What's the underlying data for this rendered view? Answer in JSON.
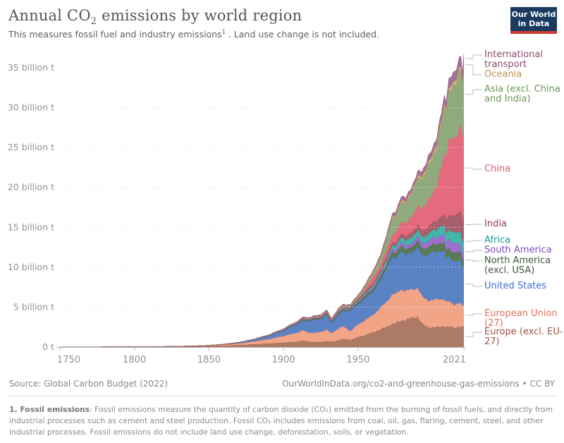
{
  "header": {
    "title_pre": "Annual CO",
    "title_sub": "2",
    "title_post": " emissions by world region",
    "subtitle_pre": "This measures fossil fuel and industry emissions",
    "subtitle_sup": "1",
    "subtitle_post": " . Land use change is not included."
  },
  "logo": {
    "line1": "Our World",
    "line2": "in Data",
    "bg": "#1A3A60",
    "accent": "#CF3B32"
  },
  "footer": {
    "source": "Source: Global Carbon Budget (2022)",
    "attribution": "OurWorldInData.org/co2-and-greenhouse-gas-emissions • CC BY"
  },
  "footnote": {
    "lead": "1. Fossil emissions",
    "body": ": Fossil emissions measure the quantity of carbon dioxide (CO₂) emitted from the burning of fossil fuels, and directly from industrial processes such as cement and steel production. Fossil CO₂ includes emissions from coal, oil, gas, flaring, cement, steel, and other industrial processes. Fossil emissions do not include land use change, deforestation, soils, or vegetation."
  },
  "chart_data": {
    "type": "area",
    "stacked": true,
    "title": "Annual CO2 emissions by world region",
    "unit": "billion tonnes CO2",
    "x_range": [
      1750,
      2021
    ],
    "ylim": [
      0,
      37
    ],
    "grid": true,
    "legend_position": "right",
    "y_ticks": [
      {
        "v": 0,
        "label": "0 t"
      },
      {
        "v": 5,
        "label": "5 billion t"
      },
      {
        "v": 10,
        "label": "10 billion t"
      },
      {
        "v": 15,
        "label": "15 billion t"
      },
      {
        "v": 20,
        "label": "20 billion t"
      },
      {
        "v": 25,
        "label": "25 billion t"
      },
      {
        "v": 30,
        "label": "30 billion t"
      },
      {
        "v": 35,
        "label": "35 billion t"
      }
    ],
    "x_ticks": [
      1750,
      1800,
      1850,
      1900,
      1950,
      2021
    ],
    "years": [
      1750,
      1775,
      1800,
      1820,
      1840,
      1850,
      1860,
      1870,
      1880,
      1890,
      1900,
      1905,
      1910,
      1913,
      1918,
      1920,
      1925,
      1929,
      1932,
      1937,
      1940,
      1945,
      1950,
      1955,
      1960,
      1965,
      1970,
      1973,
      1975,
      1979,
      1982,
      1985,
      1990,
      1993,
      1997,
      2000,
      2003,
      2005,
      2008,
      2009,
      2011,
      2013,
      2015,
      2017,
      2019,
      2020,
      2021
    ],
    "series": [
      {
        "key": "europe_excl",
        "label": "Europe (excl. EU-27)",
        "color": "#9D5345",
        "fill": "#AC7A65",
        "values": [
          0.009,
          0.015,
          0.028,
          0.05,
          0.09,
          0.12,
          0.17,
          0.25,
          0.35,
          0.45,
          0.55,
          0.62,
          0.7,
          0.78,
          0.7,
          0.62,
          0.65,
          0.72,
          0.65,
          0.85,
          1.0,
          0.9,
          1.25,
          1.5,
          1.85,
          2.2,
          2.6,
          2.9,
          3.0,
          3.3,
          3.4,
          3.6,
          3.8,
          2.9,
          2.5,
          2.45,
          2.5,
          2.55,
          2.6,
          2.45,
          2.55,
          2.5,
          2.45,
          2.5,
          2.55,
          2.45,
          2.6
        ]
      },
      {
        "key": "eu27",
        "label": "European Union (27)",
        "color": "#E2705C",
        "fill": "#F2A487",
        "values": [
          0.001,
          0.002,
          0.004,
          0.01,
          0.03,
          0.06,
          0.12,
          0.2,
          0.35,
          0.55,
          0.85,
          1.0,
          1.15,
          1.3,
          1.1,
          1.15,
          1.25,
          1.45,
          1.1,
          1.5,
          1.6,
          1.1,
          1.6,
          1.9,
          2.2,
          2.7,
          3.3,
          3.7,
          3.6,
          4.0,
          3.6,
          3.6,
          3.6,
          3.4,
          3.4,
          3.4,
          3.5,
          3.5,
          3.4,
          3.1,
          3.2,
          3.0,
          2.9,
          3.0,
          2.9,
          2.6,
          2.8
        ]
      },
      {
        "key": "usa",
        "label": "United States",
        "color": "#3D6BD0",
        "fill": "#5A83C6",
        "values": [
          0,
          0,
          0.001,
          0.002,
          0.008,
          0.02,
          0.05,
          0.1,
          0.21,
          0.4,
          0.66,
          0.9,
          1.06,
          1.2,
          1.45,
          1.6,
          1.6,
          1.8,
          1.25,
          1.7,
          1.9,
          2.5,
          2.5,
          2.7,
          2.9,
          3.4,
          4.3,
          4.6,
          4.4,
          4.9,
          4.4,
          4.6,
          5.1,
          5.2,
          5.7,
          6.0,
          5.9,
          6.1,
          5.9,
          5.5,
          5.6,
          5.5,
          5.4,
          5.2,
          5.3,
          4.7,
          5.0
        ]
      },
      {
        "key": "na_excl_usa",
        "label": "North America (excl. USA)",
        "color": "#41543E",
        "fill": "#587B50",
        "values": [
          0,
          0,
          0,
          0,
          0.001,
          0.003,
          0.006,
          0.01,
          0.02,
          0.03,
          0.05,
          0.07,
          0.09,
          0.1,
          0.11,
          0.11,
          0.12,
          0.14,
          0.11,
          0.14,
          0.16,
          0.2,
          0.25,
          0.3,
          0.35,
          0.45,
          0.55,
          0.6,
          0.6,
          0.65,
          0.65,
          0.65,
          0.75,
          0.8,
          0.9,
          0.95,
          0.95,
          1.0,
          1.0,
          0.95,
          1.0,
          1.0,
          1.05,
          1.05,
          1.05,
          0.95,
          1.0
        ]
      },
      {
        "key": "south_america",
        "label": "South America",
        "color": "#8049BE",
        "fill": "#9C71C9",
        "values": [
          0,
          0,
          0,
          0,
          0,
          0.001,
          0.002,
          0.004,
          0.008,
          0.013,
          0.02,
          0.03,
          0.035,
          0.04,
          0.045,
          0.05,
          0.06,
          0.07,
          0.06,
          0.08,
          0.09,
          0.1,
          0.13,
          0.17,
          0.22,
          0.26,
          0.33,
          0.4,
          0.43,
          0.5,
          0.5,
          0.5,
          0.6,
          0.65,
          0.8,
          0.85,
          0.85,
          0.95,
          1.05,
          1.0,
          1.15,
          1.25,
          1.2,
          1.15,
          1.1,
          1.0,
          1.1
        ]
      },
      {
        "key": "africa",
        "label": "Africa",
        "color": "#169C8E",
        "fill": "#41B7AC",
        "values": [
          0,
          0,
          0,
          0,
          0,
          0.001,
          0.002,
          0.003,
          0.005,
          0.008,
          0.012,
          0.016,
          0.02,
          0.025,
          0.03,
          0.03,
          0.035,
          0.04,
          0.04,
          0.06,
          0.07,
          0.09,
          0.12,
          0.15,
          0.2,
          0.27,
          0.35,
          0.4,
          0.45,
          0.55,
          0.6,
          0.7,
          0.75,
          0.8,
          0.85,
          0.9,
          1.0,
          1.1,
          1.15,
          1.15,
          1.2,
          1.3,
          1.35,
          1.4,
          1.45,
          1.35,
          1.45
        ]
      },
      {
        "key": "india",
        "label": "India",
        "color": "#903845",
        "fill": "#A8616C",
        "values": [
          0,
          0,
          0,
          0,
          0,
          0.001,
          0.002,
          0.004,
          0.006,
          0.01,
          0.02,
          0.03,
          0.04,
          0.05,
          0.055,
          0.06,
          0.07,
          0.08,
          0.08,
          0.1,
          0.11,
          0.12,
          0.18,
          0.22,
          0.29,
          0.28,
          0.35,
          0.4,
          0.45,
          0.5,
          0.55,
          0.6,
          0.65,
          0.75,
          0.9,
          1.0,
          1.1,
          1.2,
          1.5,
          1.6,
          1.8,
          2.0,
          2.2,
          2.4,
          2.6,
          2.4,
          2.7
        ]
      },
      {
        "key": "china",
        "label": "China",
        "color": "#E2556A",
        "fill": "#E56A7E",
        "values": [
          0,
          0,
          0,
          0,
          0,
          0.001,
          0.002,
          0.004,
          0.006,
          0.01,
          0.015,
          0.02,
          0.025,
          0.03,
          0.035,
          0.03,
          0.04,
          0.045,
          0.04,
          0.07,
          0.08,
          0.05,
          0.08,
          0.3,
          0.78,
          0.5,
          0.9,
          1.0,
          1.2,
          1.5,
          1.6,
          1.9,
          2.4,
          2.8,
          3.4,
          3.4,
          4.5,
          5.9,
          7.4,
          7.7,
          9.3,
          10.0,
          9.7,
          9.9,
          10.7,
          10.9,
          11.5
        ]
      },
      {
        "key": "asia_excl",
        "label": "Asia (excl. China and India)",
        "color": "#6A9556",
        "fill": "#8FAB7E",
        "values": [
          0,
          0,
          0,
          0,
          0,
          0.001,
          0.002,
          0.005,
          0.01,
          0.02,
          0.03,
          0.04,
          0.05,
          0.06,
          0.07,
          0.07,
          0.09,
          0.1,
          0.1,
          0.15,
          0.17,
          0.1,
          0.22,
          0.3,
          0.5,
          0.9,
          1.5,
          1.9,
          2.0,
          2.4,
          2.5,
          2.8,
          3.3,
          3.7,
          4.3,
          4.5,
          4.9,
          5.2,
          5.6,
          5.6,
          6.1,
          6.4,
          6.6,
          6.8,
          7.0,
          6.7,
          7.0
        ]
      },
      {
        "key": "oceania",
        "label": "Oceania",
        "color": "#BA8F4E",
        "fill": "#D3B473",
        "values": [
          0,
          0,
          0,
          0,
          0,
          0.001,
          0.002,
          0.003,
          0.005,
          0.008,
          0.012,
          0.015,
          0.02,
          0.022,
          0.025,
          0.03,
          0.035,
          0.04,
          0.04,
          0.045,
          0.05,
          0.06,
          0.08,
          0.1,
          0.12,
          0.15,
          0.18,
          0.2,
          0.21,
          0.24,
          0.25,
          0.27,
          0.3,
          0.32,
          0.36,
          0.4,
          0.42,
          0.43,
          0.44,
          0.43,
          0.45,
          0.45,
          0.46,
          0.45,
          0.45,
          0.43,
          0.45
        ]
      },
      {
        "key": "intl_transport",
        "label": "International transport",
        "color": "#8E4A6F",
        "fill": "#A37296",
        "values": [
          0,
          0,
          0,
          0,
          0,
          0.002,
          0.005,
          0.01,
          0.02,
          0.04,
          0.08,
          0.1,
          0.12,
          0.14,
          0.1,
          0.12,
          0.14,
          0.15,
          0.13,
          0.15,
          0.13,
          0.1,
          0.15,
          0.18,
          0.22,
          0.3,
          0.38,
          0.45,
          0.45,
          0.5,
          0.48,
          0.5,
          0.6,
          0.65,
          0.75,
          0.8,
          0.85,
          0.95,
          1.05,
          1.0,
          1.1,
          1.15,
          1.2,
          1.3,
          1.35,
          0.95,
          1.05
        ]
      }
    ]
  }
}
